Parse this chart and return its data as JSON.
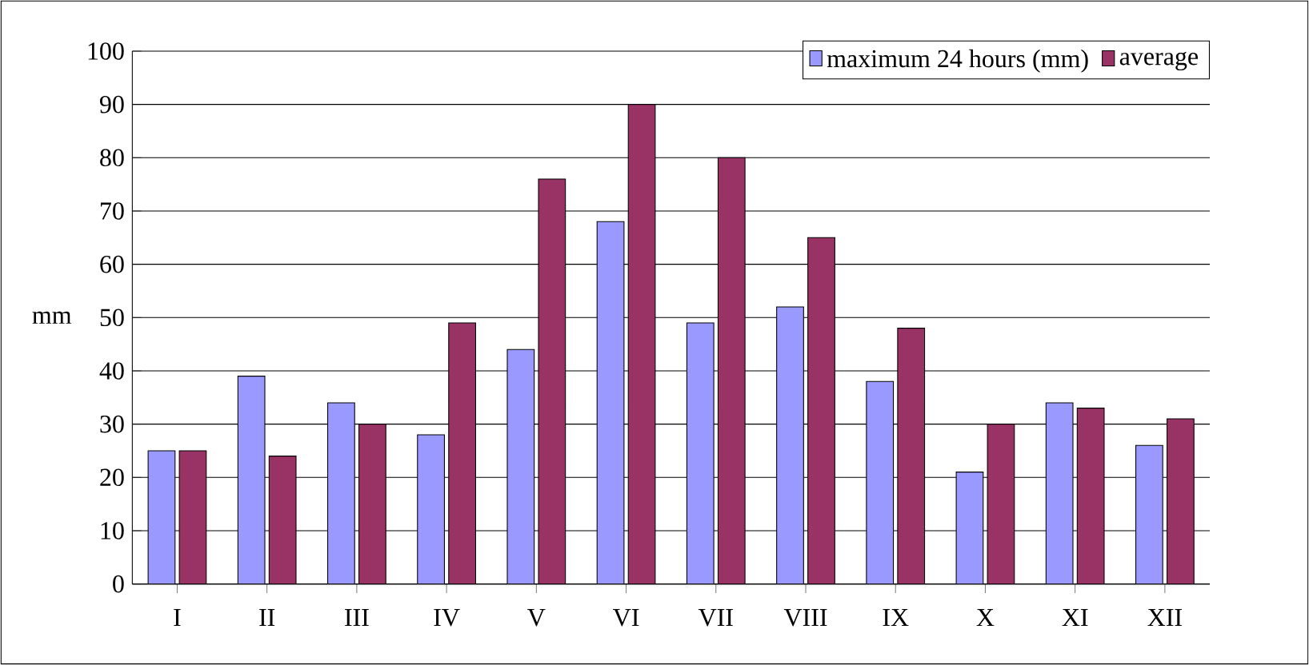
{
  "chart_data": {
    "type": "bar",
    "ylabel": "mm",
    "categories": [
      "I",
      "II",
      "III",
      "IV",
      "V",
      "VI",
      "VII",
      "VIII",
      "IX",
      "X",
      "XI",
      "XII"
    ],
    "series": [
      {
        "name": "maximum 24 hours (mm)",
        "color": "#9999ff",
        "values": [
          25,
          39,
          34,
          28,
          44,
          68,
          49,
          52,
          38,
          21,
          34,
          26
        ]
      },
      {
        "name": "average",
        "color": "#993366",
        "values": [
          25,
          24,
          30,
          49,
          76,
          90,
          80,
          65,
          48,
          30,
          33,
          31
        ]
      }
    ],
    "ylim": [
      0,
      100
    ],
    "yticks": [
      0,
      10,
      20,
      30,
      40,
      50,
      60,
      70,
      80,
      90,
      100
    ],
    "grid": "y",
    "legend": "top right"
  }
}
